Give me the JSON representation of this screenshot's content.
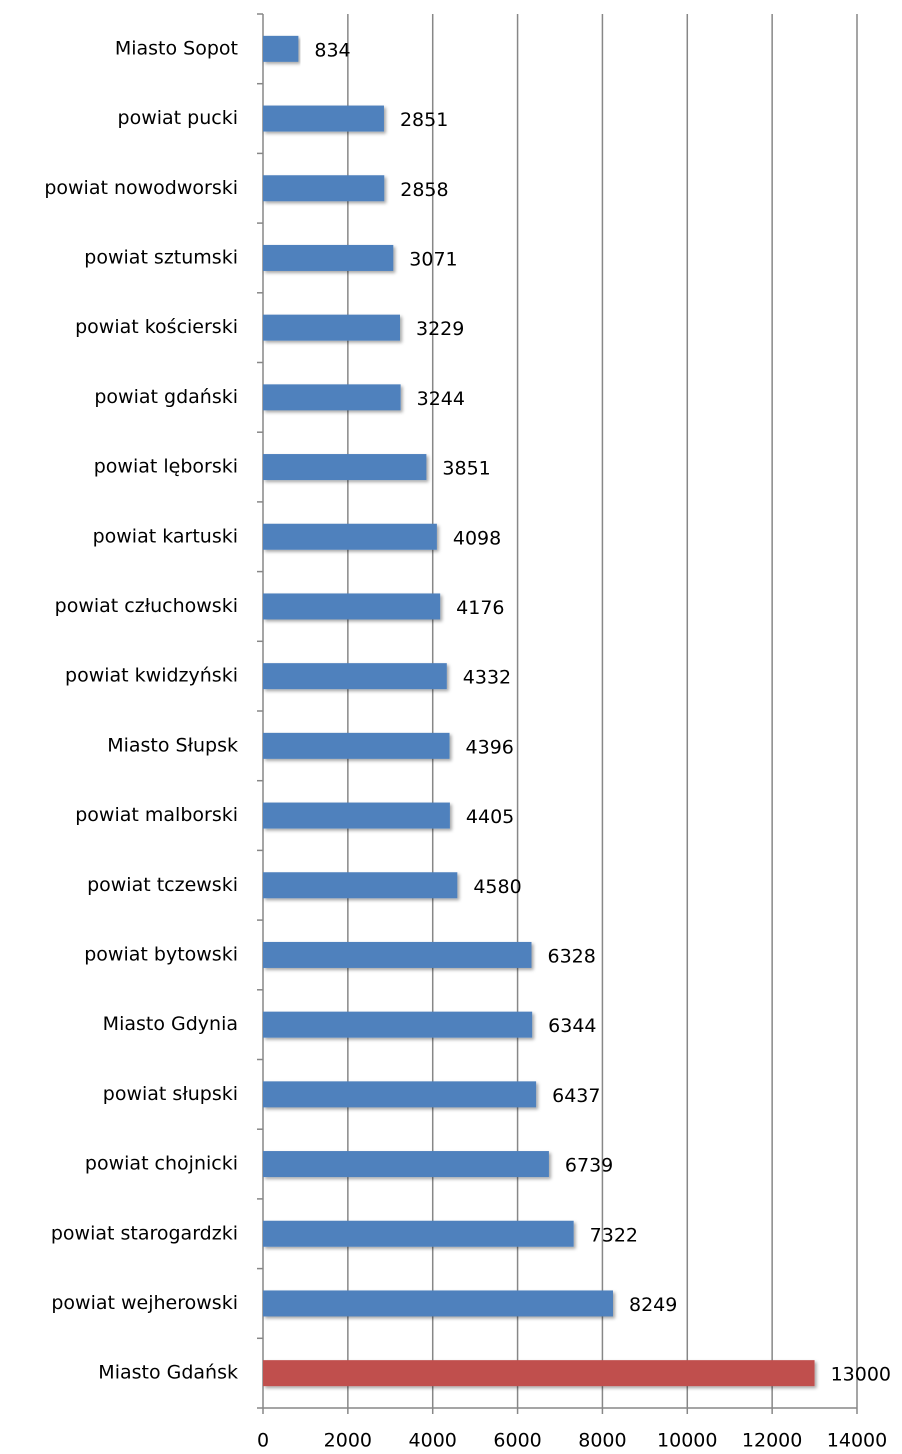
{
  "chart_data": {
    "type": "bar",
    "orientation": "horizontal",
    "categories": [
      "Miasto Sopot",
      "powiat pucki",
      "powiat nowodworski",
      "powiat sztumski",
      "powiat kościerski",
      "powiat gdański",
      "powiat lęborski",
      "powiat kartuski",
      "powiat człuchowski",
      "powiat kwidzyński",
      "Miasto Słupsk",
      "powiat malborski",
      "powiat tczewski",
      "powiat bytowski",
      "Miasto Gdynia",
      "powiat słupski",
      "powiat chojnicki",
      "powiat starogardzki",
      "powiat wejherowski",
      "Miasto Gdańsk"
    ],
    "values": [
      834,
      2851,
      2858,
      3071,
      3229,
      3244,
      3851,
      4098,
      4176,
      4332,
      4396,
      4405,
      4580,
      6328,
      6344,
      6437,
      6739,
      7322,
      8249,
      13000
    ],
    "colors": [
      "#4f81bd",
      "#4f81bd",
      "#4f81bd",
      "#4f81bd",
      "#4f81bd",
      "#4f81bd",
      "#4f81bd",
      "#4f81bd",
      "#4f81bd",
      "#4f81bd",
      "#4f81bd",
      "#4f81bd",
      "#4f81bd",
      "#4f81bd",
      "#4f81bd",
      "#4f81bd",
      "#4f81bd",
      "#4f81bd",
      "#4f81bd",
      "#c0504d"
    ],
    "xlim": [
      0,
      14000
    ],
    "xticks": [
      0,
      2000,
      4000,
      6000,
      8000,
      10000,
      12000,
      14000
    ],
    "grid": true
  }
}
